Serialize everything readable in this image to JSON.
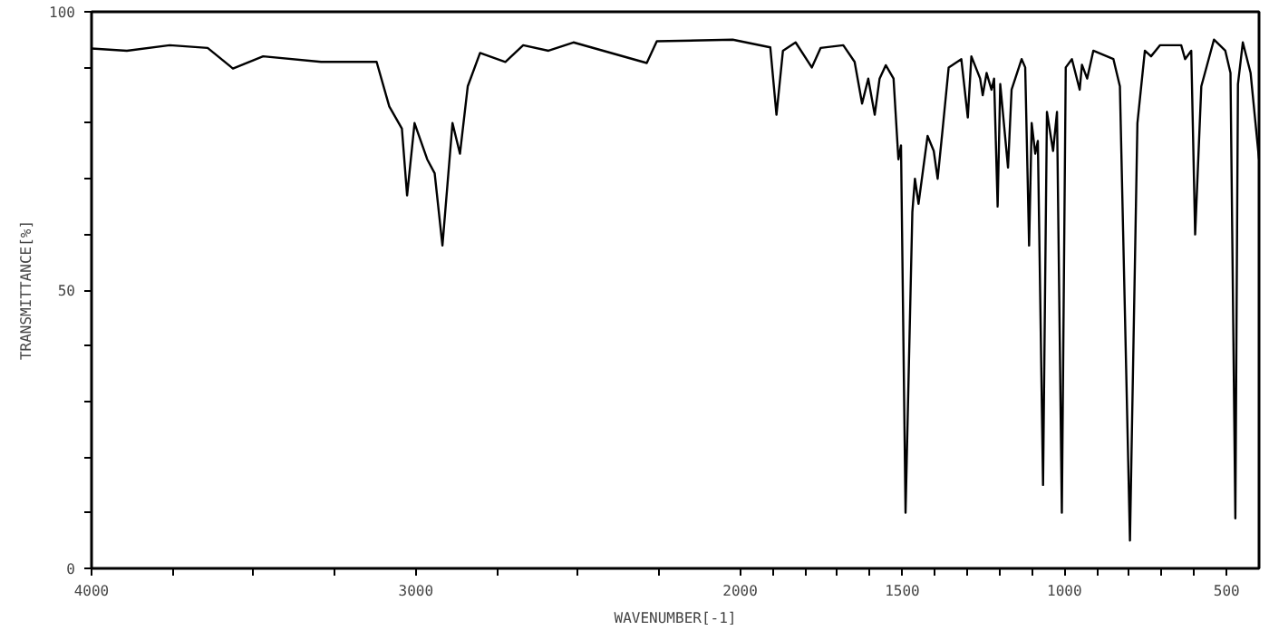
{
  "chart_data": {
    "type": "line",
    "xlabel": "WAVENUMBER[-1]",
    "ylabel": "TRANSMITTANCE[%]",
    "x": [
      4000,
      3891,
      3759,
      3642,
      3564,
      3471,
      3292,
      3121,
      3082,
      3043,
      3027,
      3004,
      2965,
      2942,
      2918,
      2887,
      2864,
      2840,
      2802,
      2724,
      2669,
      2591,
      2514,
      2288,
      2257,
      2023,
      1907,
      1888,
      1868,
      1829,
      1779,
      1752,
      1682,
      1647,
      1624,
      1605,
      1585,
      1570,
      1551,
      1527,
      1512,
      1504,
      1490,
      1469,
      1461,
      1450,
      1422,
      1403,
      1391,
      1376,
      1357,
      1318,
      1298,
      1287,
      1260,
      1252,
      1240,
      1225,
      1217,
      1206,
      1198,
      1174,
      1163,
      1132,
      1121,
      1109,
      1101,
      1090,
      1082,
      1066,
      1054,
      1035,
      1023,
      1008,
      996,
      977,
      953,
      946,
      930,
      911,
      849,
      829,
      798,
      775,
      752,
      733,
      705,
      640,
      628,
      609,
      597,
      578,
      539,
      504,
      488,
      473,
      465,
      450,
      426,
      400
    ],
    "series": [
      {
        "color": "#000000",
        "values": [
          93.4,
          93,
          94,
          93.5,
          89.8,
          92,
          91,
          91,
          83,
          79,
          67,
          80,
          73.5,
          71,
          58,
          80,
          74.5,
          86.6,
          92.6,
          91,
          94,
          93,
          94.5,
          90.8,
          94.7,
          95,
          93.6,
          81.5,
          93,
          94.5,
          90,
          93.5,
          94,
          91,
          83.5,
          88,
          81.5,
          88,
          90.4,
          88,
          73.5,
          76,
          10,
          64,
          70,
          65.5,
          77.7,
          75,
          70,
          78.7,
          90,
          91.5,
          81,
          92,
          88,
          85,
          89,
          86,
          88,
          65,
          87,
          72,
          86,
          91.5,
          90,
          58,
          80,
          74.5,
          76.8,
          15,
          82,
          75,
          82,
          10,
          90,
          91.5,
          86,
          90.5,
          88,
          93,
          91.5,
          86.6,
          5,
          80,
          93,
          92,
          94,
          94,
          91.5,
          93,
          60,
          86.6,
          95,
          93,
          89,
          9,
          87,
          94.5,
          89,
          73.5
        ]
      }
    ],
    "xlim": [
      4000,
      400
    ],
    "ylim": [
      0,
      100
    ],
    "xticks": [
      4000,
      {
        "value": 3750,
        "label": null
      },
      {
        "value": 3500,
        "label": null
      },
      {
        "value": 3250,
        "label": null
      },
      3000,
      {
        "value": 2750,
        "label": null
      },
      {
        "value": 2500,
        "label": null
      },
      {
        "value": 2250,
        "label": null
      },
      2000,
      {
        "value": 1900,
        "label": null
      },
      {
        "value": 1800,
        "label": null
      },
      {
        "value": 1700,
        "label": null
      },
      {
        "value": 1600,
        "label": null
      },
      1500,
      {
        "value": 1400,
        "label": null
      },
      {
        "value": 1300,
        "label": null
      },
      {
        "value": 1200,
        "label": null
      },
      {
        "value": 1100,
        "label": null
      },
      1000,
      {
        "value": 900,
        "label": null
      },
      {
        "value": 800,
        "label": null
      },
      {
        "value": 700,
        "label": null
      },
      {
        "value": 600,
        "label": null
      },
      500
    ],
    "yticks": [
      0,
      {
        "value": 10,
        "label": null
      },
      {
        "value": 20,
        "label": null
      },
      {
        "value": 30,
        "label": null
      },
      {
        "value": 40,
        "label": null
      },
      50,
      {
        "value": 60,
        "label": null
      },
      {
        "value": 70,
        "label": null
      },
      {
        "value": 80,
        "label": null
      },
      {
        "value": 90,
        "label": null
      },
      100
    ],
    "grid": false,
    "marker": "none",
    "line_style": "solid"
  }
}
